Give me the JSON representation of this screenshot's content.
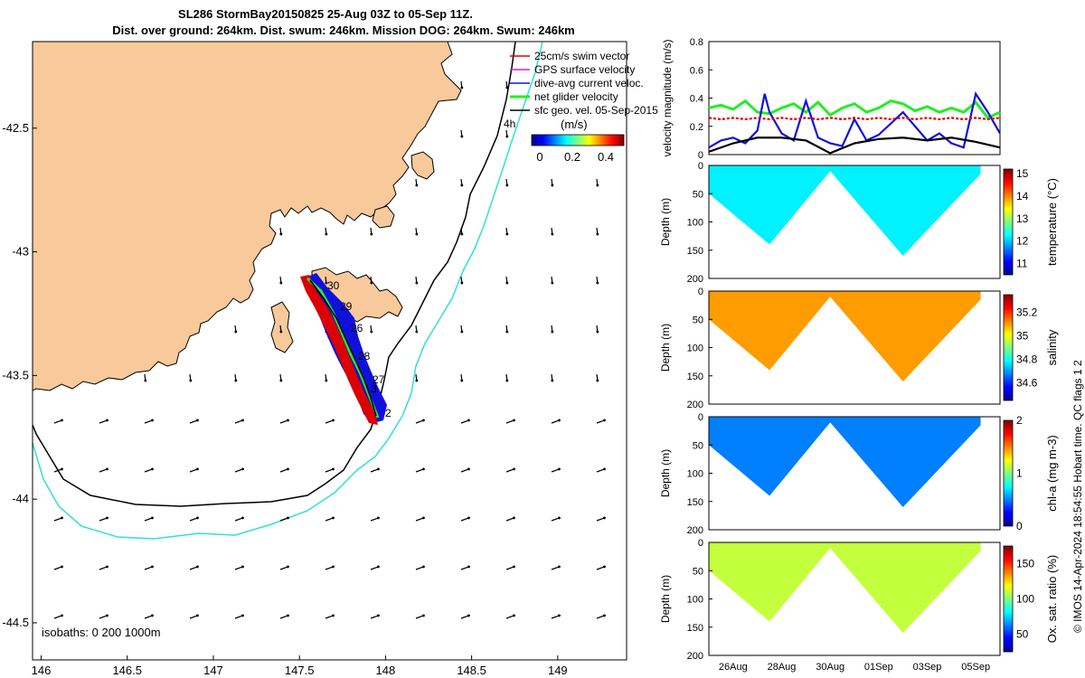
{
  "header": {
    "title_line1": "SL286 StormBay20150825 25-Aug 03Z to 05-Sep 11Z.",
    "title_line2": "Dist. over ground: 264km. Dist. swum: 246km. Mission DOG: 264km. Swum: 246km"
  },
  "credit": "© IMOS 14-Apr-2024 18:54:55 Hobart time. QC flags 1  2",
  "colors": {
    "land": "#f8c99b",
    "isobath_200": "#000000",
    "isobath_1000": "#33dddd",
    "swim_vector": "#dd0000",
    "gps_velocity": "#d020d0",
    "dive_avg": "#1010dd",
    "net_glider": "#22ee22",
    "sfc_geo": "#000000"
  },
  "chart_data": [
    {
      "type": "scatter",
      "name": "map",
      "x_ticks": [
        "146",
        "146.5",
        "147",
        "147.5",
        "148",
        "148.5",
        "149"
      ],
      "y_ticks": [
        "-42.5",
        "-43",
        "-43.5",
        "-44",
        "-44.5"
      ],
      "xlim": [
        145.95,
        149.4
      ],
      "ylim": [
        -44.65,
        -42.15
      ],
      "legend": [
        {
          "label": "25cm/s swim vector",
          "color": "#dd0000"
        },
        {
          "label": "GPS surface velocity",
          "color": "#d020d0"
        },
        {
          "label": "dive-avg current veloc.",
          "color": "#1010dd"
        },
        {
          "label": "net glider velocity",
          "color": "#22ee22"
        },
        {
          "label": "sfc geo. vel. 05-Sep-2015",
          "color": "#000000"
        }
      ],
      "legend_position": "top-right",
      "isobaths_label": "isobaths: 0   200  1000m",
      "time_label": "4h",
      "colorbar": {
        "label": "(m/s)",
        "ticks": [
          "0",
          "0.2",
          "0.4"
        ],
        "range": [
          0,
          0.45
        ]
      },
      "day_labels": [
        "30",
        "29",
        "26",
        "28",
        "27",
        "3",
        "2"
      ]
    },
    {
      "type": "line",
      "name": "velocity",
      "ylabel": "velocity magnitude (m/s)",
      "ylim": [
        0,
        0.8
      ],
      "y_ticks": [
        "0",
        "0.2",
        "0.4",
        "0.6",
        "0.8"
      ],
      "x_ticks": [
        "26Aug",
        "28Aug",
        "30Aug",
        "01Sep",
        "03Sep",
        "05Sep"
      ],
      "x_days": [
        1,
        3,
        5,
        7,
        9,
        11
      ],
      "xlim": [
        0,
        12
      ],
      "series": [
        {
          "color": "#22ee22",
          "x": [
            0,
            0.5,
            1,
            1.5,
            2,
            2.5,
            3,
            3.5,
            4,
            4.5,
            5,
            5.5,
            6,
            6.5,
            7,
            7.5,
            8,
            8.5,
            9,
            9.5,
            10,
            10.5,
            11,
            11.5,
            12
          ],
          "values": [
            0.33,
            0.35,
            0.32,
            0.38,
            0.3,
            0.29,
            0.33,
            0.36,
            0.3,
            0.37,
            0.28,
            0.33,
            0.36,
            0.3,
            0.33,
            0.38,
            0.36,
            0.31,
            0.34,
            0.3,
            0.33,
            0.3,
            0.37,
            0.26,
            0.3
          ]
        },
        {
          "color": "#1010dd",
          "x": [
            0,
            0.5,
            1,
            1.5,
            2,
            2.3,
            2.5,
            3,
            3.5,
            4,
            4.5,
            5,
            5.5,
            6,
            6.5,
            7,
            7.5,
            8,
            8.5,
            9,
            9.5,
            10,
            10.5,
            11,
            11.5,
            12
          ],
          "values": [
            0.05,
            0.1,
            0.12,
            0.08,
            0.17,
            0.43,
            0.3,
            0.15,
            0.1,
            0.38,
            0.12,
            0.08,
            0.06,
            0.25,
            0.1,
            0.14,
            0.22,
            0.3,
            0.2,
            0.1,
            0.15,
            0.08,
            0.05,
            0.43,
            0.3,
            0.15
          ]
        },
        {
          "color": "#dd0000",
          "x": [
            0,
            0.5,
            1,
            1.5,
            2,
            2.5,
            3,
            3.5,
            4,
            4.5,
            5,
            5.5,
            6,
            6.5,
            7,
            7.5,
            8,
            8.5,
            9,
            9.5,
            10,
            10.5,
            11,
            11.5,
            12
          ],
          "values": [
            0.26,
            0.25,
            0.26,
            0.25,
            0.26,
            0.25,
            0.26,
            0.25,
            0.26,
            0.25,
            0.26,
            0.25,
            0.26,
            0.25,
            0.26,
            0.25,
            0.26,
            0.25,
            0.26,
            0.25,
            0.26,
            0.25,
            0.26,
            0.25,
            0.26
          ]
        },
        {
          "color": "#000000",
          "x": [
            0,
            1,
            2,
            3,
            4,
            5,
            6,
            7,
            8,
            9,
            10,
            11,
            12
          ],
          "values": [
            0.02,
            0.08,
            0.12,
            0.12,
            0.1,
            0.01,
            0.08,
            0.11,
            0.12,
            0.1,
            0.12,
            0.09,
            0.05
          ]
        }
      ]
    },
    {
      "type": "heatmap",
      "name": "temperature",
      "ylabel": "Depth (m)",
      "colorbar_label": "temperature (°C)",
      "colorbar_ticks": [
        "15",
        "14",
        "13",
        "12",
        "11"
      ],
      "clim": [
        10.5,
        15.2
      ],
      "y_ticks": [
        "0",
        "50",
        "100",
        "150",
        "200"
      ],
      "ylim": [
        0,
        200
      ],
      "depth_profile": {
        "x": [
          0,
          2.5,
          5,
          8,
          11.2
        ],
        "depth": [
          50,
          140,
          10,
          160,
          15
        ]
      },
      "typical": 12.2
    },
    {
      "type": "heatmap",
      "name": "salinity",
      "ylabel": "Depth (m)",
      "colorbar_label": "salinity",
      "colorbar_ticks": [
        "35.2",
        "35",
        "34.8",
        "34.6"
      ],
      "clim": [
        34.45,
        35.35
      ],
      "y_ticks": [
        "0",
        "50",
        "100",
        "150",
        "200"
      ],
      "ylim": [
        0,
        200
      ],
      "depth_profile": {
        "x": [
          0,
          2.5,
          5,
          8,
          11.2
        ],
        "depth": [
          50,
          140,
          10,
          160,
          15
        ]
      },
      "typical": 35.1
    },
    {
      "type": "heatmap",
      "name": "chl-a",
      "ylabel": "Depth (m)",
      "colorbar_label": "chl-a (mg m-3)",
      "colorbar_ticks": [
        "2",
        "1",
        "0"
      ],
      "clim": [
        0,
        2
      ],
      "y_ticks": [
        "0",
        "50",
        "100",
        "150",
        "200"
      ],
      "ylim": [
        0,
        200
      ],
      "depth_profile": {
        "x": [
          0,
          2.5,
          5,
          8,
          11.2
        ],
        "depth": [
          50,
          140,
          10,
          160,
          15
        ]
      },
      "typical": 0.5
    },
    {
      "type": "heatmap",
      "name": "oxygen",
      "ylabel": "Depth (m)",
      "colorbar_label": "Ox. sat. ratio (%)",
      "colorbar_ticks": [
        "150",
        "100",
        "50"
      ],
      "clim": [
        25,
        175
      ],
      "y_ticks": [
        "0",
        "50",
        "100",
        "150",
        "200"
      ],
      "ylim": [
        0,
        200
      ],
      "depth_profile": {
        "x": [
          0,
          2.5,
          5,
          8,
          11.2
        ],
        "depth": [
          50,
          140,
          10,
          160,
          15
        ]
      },
      "typical": 110
    }
  ]
}
